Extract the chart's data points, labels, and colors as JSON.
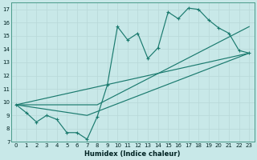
{
  "xlabel": "Humidex (Indice chaleur)",
  "bg_color": "#c8e8e8",
  "line_color": "#1a7a6e",
  "grid_color": "#b8d8d8",
  "xlim": [
    -0.5,
    23.5
  ],
  "ylim": [
    7,
    17.5
  ],
  "yticks": [
    7,
    8,
    9,
    10,
    11,
    12,
    13,
    14,
    15,
    16,
    17
  ],
  "xticks": [
    0,
    1,
    2,
    3,
    4,
    5,
    6,
    7,
    8,
    9,
    10,
    11,
    12,
    13,
    14,
    15,
    16,
    17,
    18,
    19,
    20,
    21,
    22,
    23
  ],
  "lines": [
    {
      "x": [
        0,
        1,
        2,
        3,
        4,
        5,
        6,
        7,
        8,
        9,
        10,
        11,
        12,
        13,
        14,
        15,
        16,
        17,
        18,
        19,
        20,
        21,
        22,
        23
      ],
      "y": [
        9.8,
        9.2,
        8.5,
        9.0,
        8.7,
        7.7,
        7.7,
        7.2,
        8.9,
        11.3,
        15.7,
        14.7,
        15.2,
        13.3,
        14.1,
        16.8,
        16.3,
        17.1,
        17.0,
        16.2,
        15.6,
        15.2,
        13.9,
        13.7
      ],
      "has_markers": true
    },
    {
      "x": [
        0,
        23
      ],
      "y": [
        9.8,
        13.7
      ],
      "has_markers": false
    },
    {
      "x": [
        0,
        8,
        23
      ],
      "y": [
        9.8,
        9.8,
        15.7
      ],
      "has_markers": false
    },
    {
      "x": [
        0,
        7,
        23
      ],
      "y": [
        9.8,
        9.0,
        13.7
      ],
      "has_markers": false
    }
  ]
}
